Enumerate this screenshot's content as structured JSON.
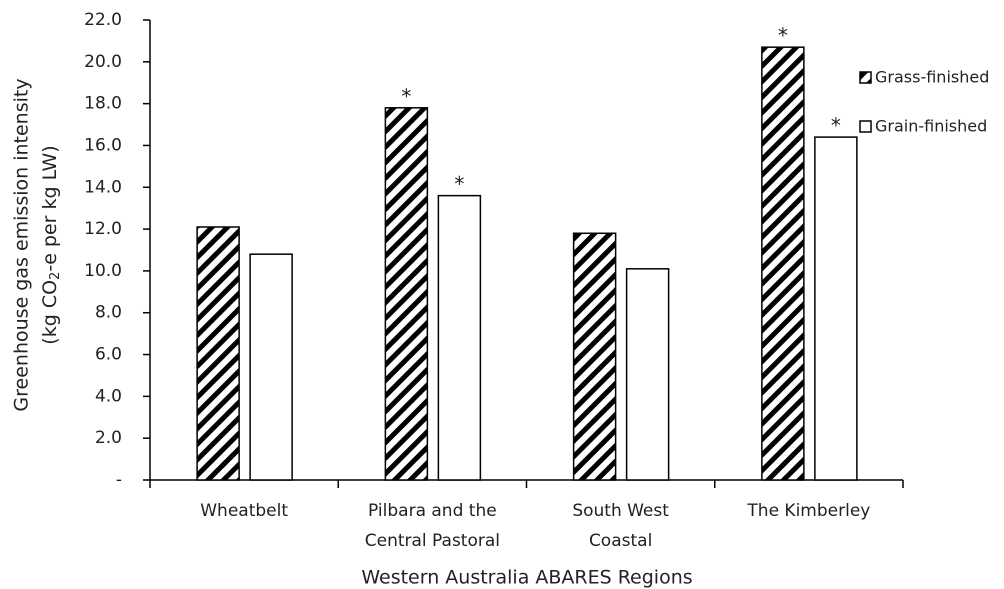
{
  "chart_data": {
    "type": "bar",
    "ylabel": {
      "line1": "Greenhouse gas emission intensity",
      "line2": [
        "(kg CO",
        "2",
        "-e per kg LW)"
      ]
    },
    "xlabel": "Western Australia ABARES Regions",
    "categories": [
      [
        "Wheatbelt"
      ],
      [
        "Pilbara and the",
        "Central Pastoral"
      ],
      [
        "South West",
        "Coastal"
      ],
      [
        "The Kimberley"
      ]
    ],
    "series": [
      {
        "name": "Grass-finished",
        "color": "#000000",
        "pattern": "hatch",
        "values": [
          12.1,
          17.8,
          11.8,
          20.7
        ],
        "markers": [
          null,
          "*",
          null,
          "*"
        ]
      },
      {
        "name": "Grain-finished",
        "color": "#000000",
        "pattern": "none",
        "values": [
          10.8,
          13.6,
          10.1,
          16.4
        ],
        "markers": [
          null,
          "*",
          null,
          "*"
        ]
      }
    ],
    "ylim": [
      0,
      22
    ],
    "yticks": [
      {
        "value": 0,
        "label": "-"
      },
      {
        "value": 2,
        "label": "2.0"
      },
      {
        "value": 4,
        "label": "4.0"
      },
      {
        "value": 6,
        "label": "6.0"
      },
      {
        "value": 8,
        "label": "8.0"
      },
      {
        "value": 10,
        "label": "10.0"
      },
      {
        "value": 12,
        "label": "12.0"
      },
      {
        "value": 14,
        "label": "14.0"
      },
      {
        "value": 16,
        "label": "16.0"
      },
      {
        "value": 18,
        "label": "18.0"
      },
      {
        "value": 20,
        "label": "20.0"
      },
      {
        "value": 22,
        "label": "22.0"
      }
    ],
    "grid": false,
    "legend": "right"
  }
}
